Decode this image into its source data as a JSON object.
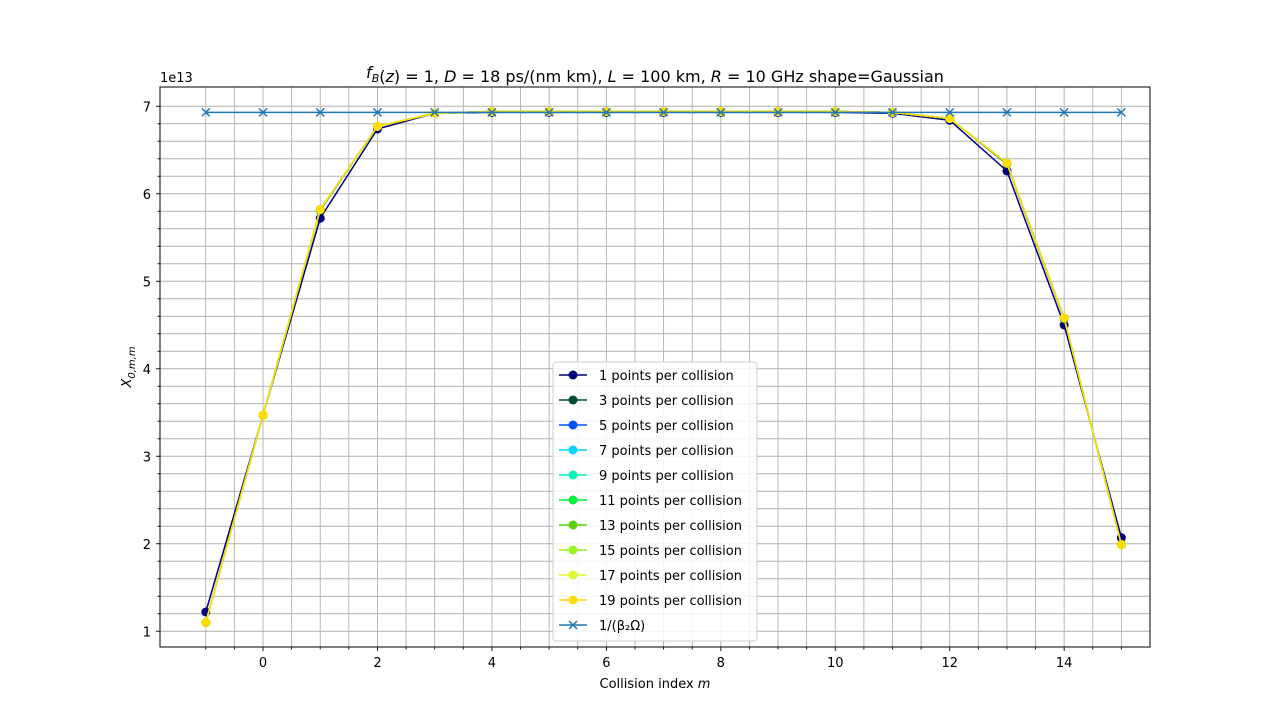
{
  "chart_data": {
    "type": "line",
    "title": "f_B(z) = 1, D = 18 ps/(nm km), L = 100 km, R = 10 GHz shape=Gaussian",
    "xlabel": "Collision index m",
    "ylabel": "X_{0,m,m}",
    "y_offset_label": "1e13",
    "xlim": [
      -1.8,
      15.5
    ],
    "ylim": [
      0.82,
      7.22
    ],
    "x_major_ticks": [
      0,
      2,
      4,
      6,
      8,
      10,
      12,
      14
    ],
    "y_major_ticks": [
      1,
      2,
      3,
      4,
      5,
      6,
      7
    ],
    "grid": "major and minor",
    "legend_position": "lower center",
    "x": [
      -1,
      0,
      1,
      2,
      3,
      4,
      5,
      6,
      7,
      8,
      9,
      10,
      11,
      12,
      13,
      14,
      15
    ],
    "series": [
      {
        "name": "1 points per collision",
        "color": "#000080",
        "marker": "o",
        "values": [
          1.22,
          3.47,
          5.72,
          6.74,
          6.92,
          6.93,
          6.93,
          6.93,
          6.93,
          6.93,
          6.93,
          6.93,
          6.92,
          6.84,
          6.26,
          4.5,
          2.07
        ]
      },
      {
        "name": "3 points per collision",
        "color": "#004c3a",
        "marker": "o",
        "values": [
          1.1,
          3.47,
          5.81,
          6.77,
          6.92,
          6.94,
          6.94,
          6.94,
          6.94,
          6.94,
          6.94,
          6.94,
          6.93,
          6.86,
          6.34,
          4.57,
          1.99
        ]
      },
      {
        "name": "5 points per collision",
        "color": "#0050ff",
        "marker": "o",
        "values": [
          1.1,
          3.47,
          5.82,
          6.77,
          6.92,
          6.94,
          6.94,
          6.94,
          6.94,
          6.94,
          6.94,
          6.94,
          6.93,
          6.86,
          6.35,
          4.58,
          1.99
        ]
      },
      {
        "name": "7 points per collision",
        "color": "#00d4ff",
        "marker": "o",
        "values": [
          1.1,
          3.47,
          5.82,
          6.77,
          6.92,
          6.94,
          6.94,
          6.94,
          6.94,
          6.94,
          6.94,
          6.94,
          6.93,
          6.86,
          6.35,
          4.58,
          1.99
        ]
      },
      {
        "name": "9 points per collision",
        "color": "#00f5b8",
        "marker": "o",
        "values": [
          1.1,
          3.47,
          5.82,
          6.77,
          6.92,
          6.94,
          6.94,
          6.94,
          6.94,
          6.94,
          6.94,
          6.94,
          6.93,
          6.86,
          6.35,
          4.58,
          1.99
        ]
      },
      {
        "name": "11 points per collision",
        "color": "#00f03c",
        "marker": "o",
        "values": [
          1.1,
          3.47,
          5.82,
          6.77,
          6.92,
          6.94,
          6.94,
          6.94,
          6.94,
          6.94,
          6.94,
          6.94,
          6.93,
          6.86,
          6.35,
          4.58,
          1.99
        ]
      },
      {
        "name": "13 points per collision",
        "color": "#5ad200",
        "marker": "o",
        "values": [
          1.1,
          3.47,
          5.82,
          6.77,
          6.92,
          6.94,
          6.94,
          6.94,
          6.94,
          6.94,
          6.94,
          6.94,
          6.93,
          6.86,
          6.35,
          4.58,
          1.99
        ]
      },
      {
        "name": "15 points per collision",
        "color": "#96f51e",
        "marker": "o",
        "values": [
          1.1,
          3.47,
          5.82,
          6.77,
          6.92,
          6.94,
          6.94,
          6.94,
          6.94,
          6.94,
          6.94,
          6.94,
          6.93,
          6.86,
          6.35,
          4.58,
          1.99
        ]
      },
      {
        "name": "17 points per collision",
        "color": "#e1f52d",
        "marker": "o",
        "values": [
          1.1,
          3.47,
          5.82,
          6.77,
          6.92,
          6.94,
          6.94,
          6.94,
          6.94,
          6.94,
          6.94,
          6.94,
          6.93,
          6.86,
          6.35,
          4.58,
          1.99
        ]
      },
      {
        "name": "19 points per collision",
        "color": "#ffdc00",
        "marker": "o",
        "values": [
          1.1,
          3.47,
          5.82,
          6.77,
          6.92,
          6.94,
          6.94,
          6.94,
          6.94,
          6.94,
          6.94,
          6.94,
          6.93,
          6.86,
          6.35,
          4.58,
          1.99
        ]
      },
      {
        "name": "1/(β₂Ω)",
        "color": "#1f77b4",
        "marker": "x",
        "values": [
          6.93,
          6.93,
          6.93,
          6.93,
          6.93,
          6.93,
          6.93,
          6.93,
          6.93,
          6.93,
          6.93,
          6.93,
          6.93,
          6.93,
          6.93,
          6.93,
          6.93
        ]
      }
    ]
  }
}
